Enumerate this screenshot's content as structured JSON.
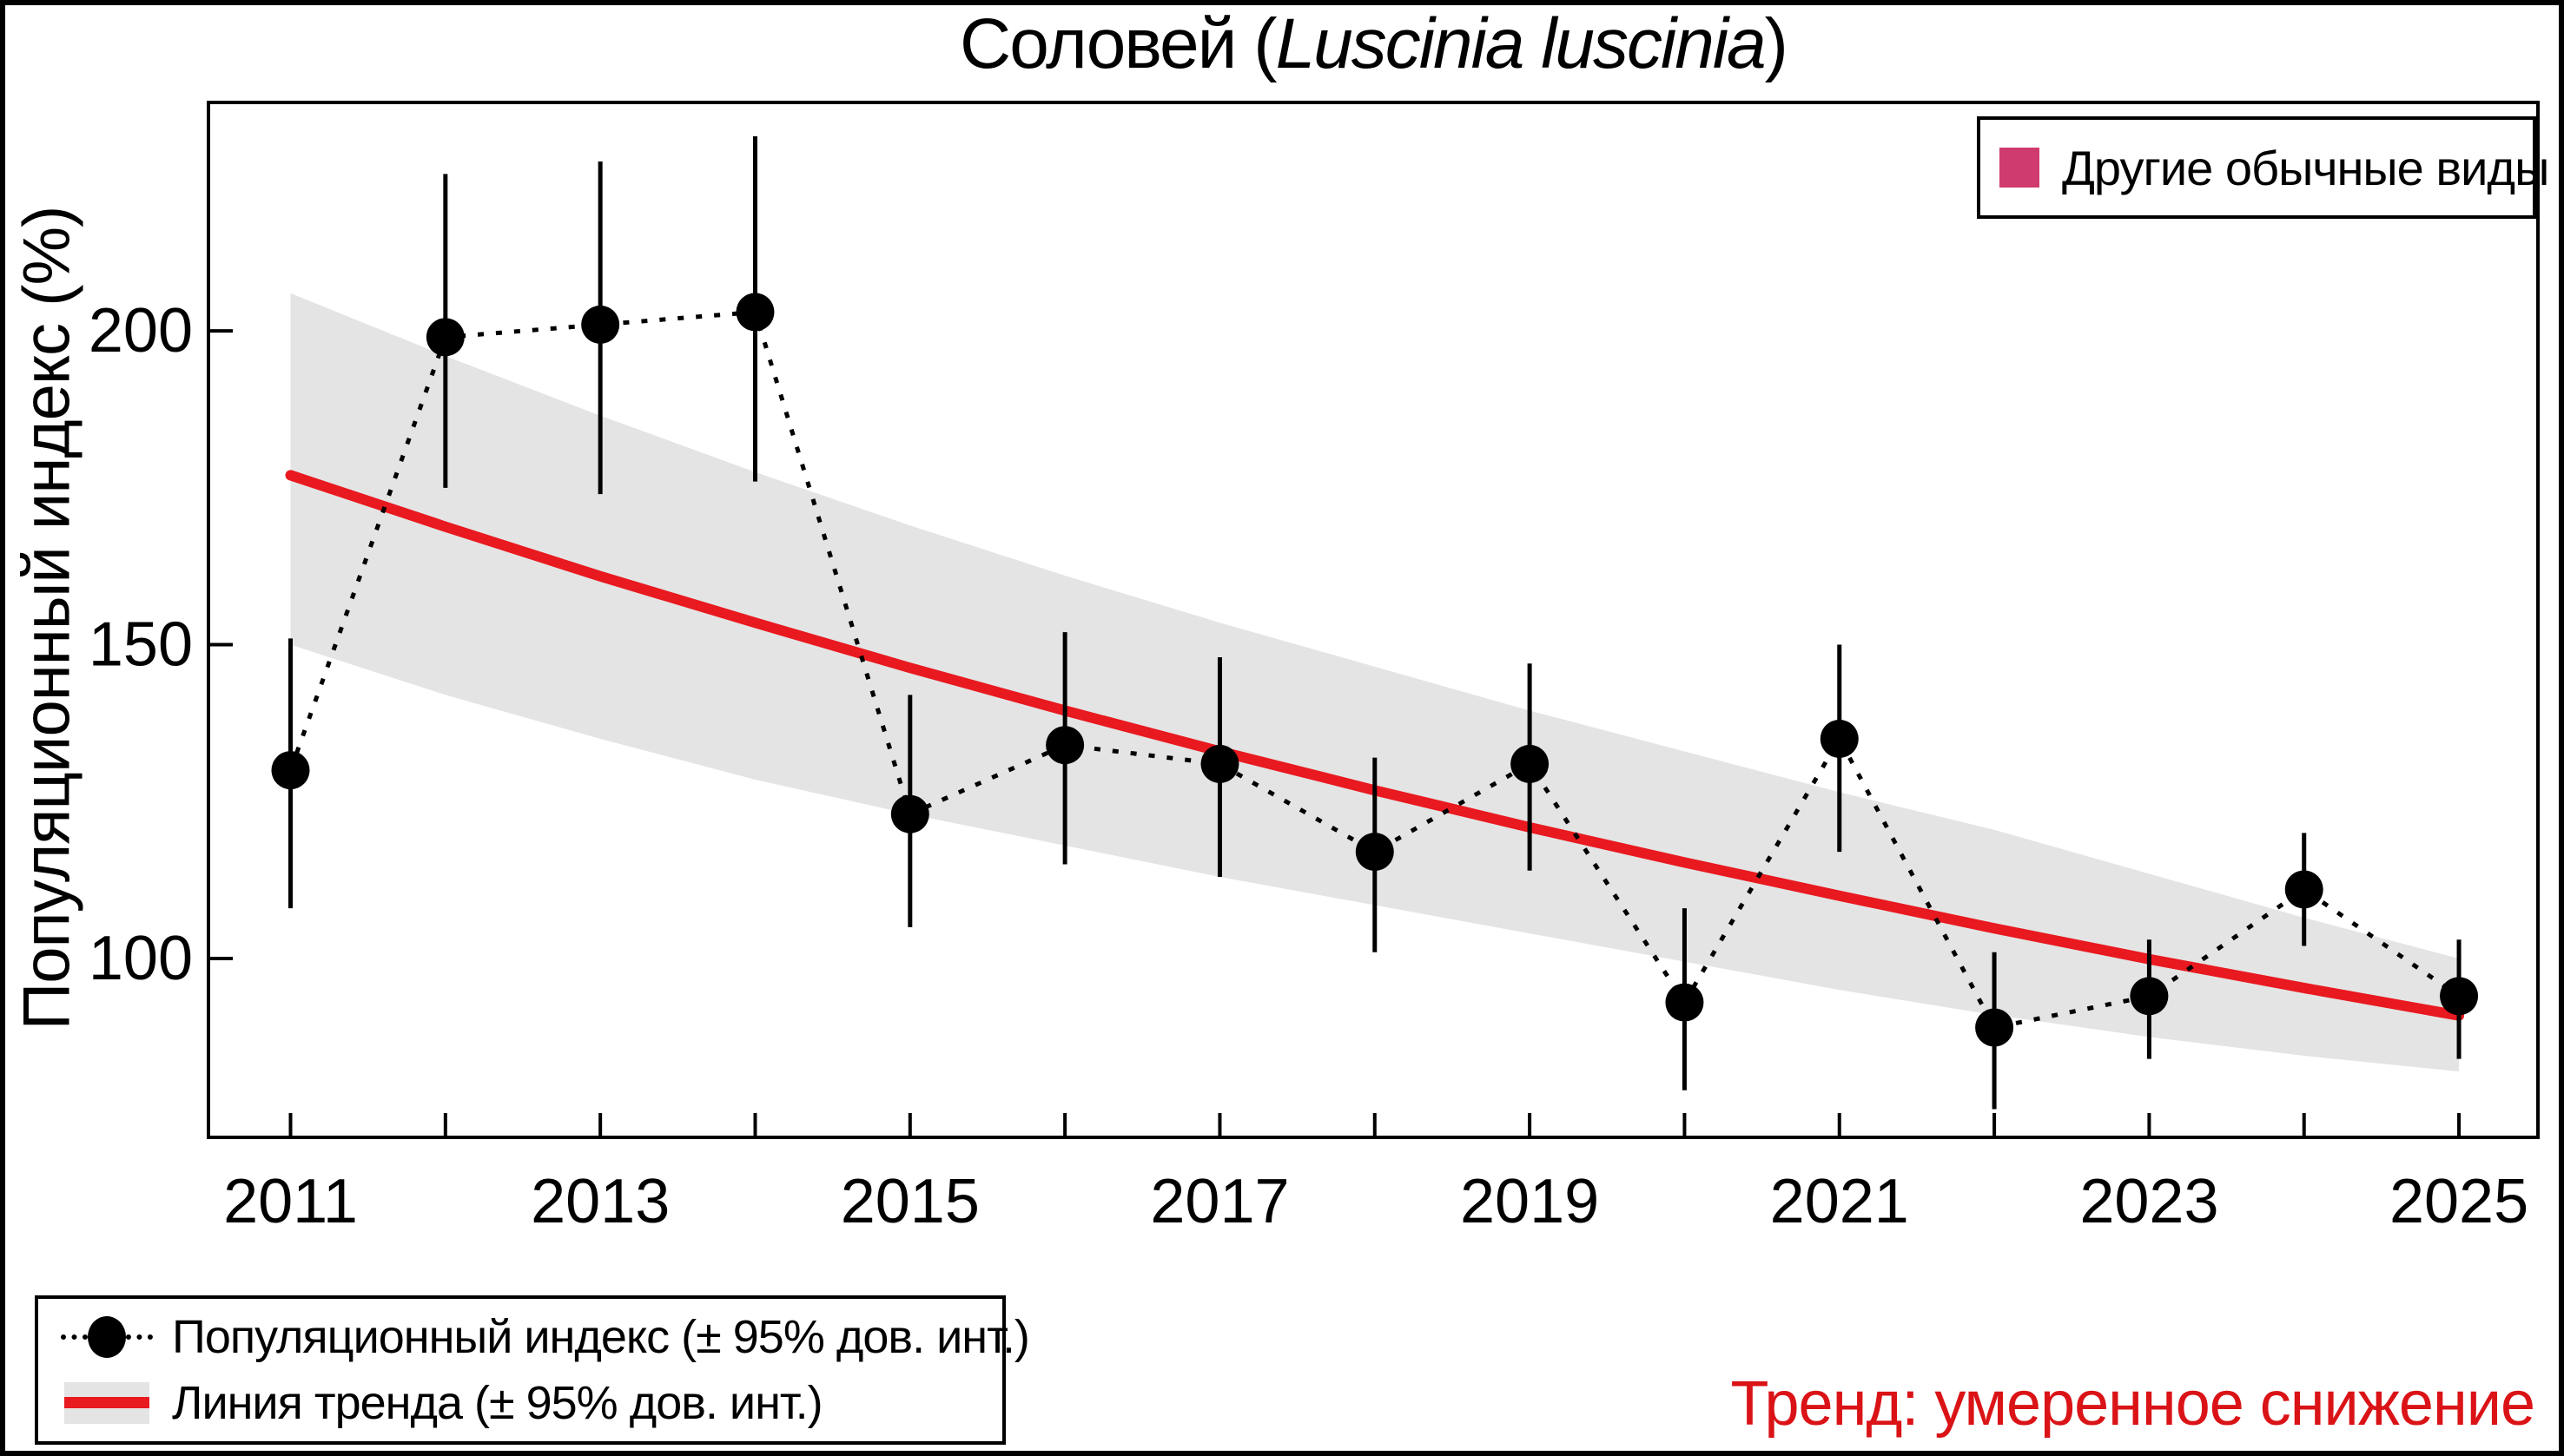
{
  "title": {
    "prefix": "Соловей (",
    "species": "Luscinia luscinia",
    "suffix": ")"
  },
  "y_axis": {
    "label": "Популяционный индекс (%)",
    "ticks": [
      100,
      150,
      200
    ]
  },
  "x_axis": {
    "label_years": [
      2011,
      2013,
      2015,
      2017,
      2019,
      2021,
      2023,
      2025
    ]
  },
  "legend_top": {
    "label": "Другие обычные виды",
    "swatch_color": "#cf3a6f"
  },
  "legend_bottom": {
    "item_index": "Популяционный индекс (± 95% дов. инт.)",
    "item_trend": "Линия тренда (± 95% дов. инт.)"
  },
  "trend_note": {
    "text": "Тренд: умеренное снижение",
    "color": "#da1317"
  },
  "chart_data": {
    "type": "line",
    "title": "Соловей (Luscinia luscinia)",
    "xlabel": "",
    "ylabel": "Популяционный индекс (%)",
    "x": [
      2011,
      2012,
      2013,
      2014,
      2015,
      2016,
      2017,
      2018,
      2019,
      2020,
      2021,
      2022,
      2023,
      2024,
      2025
    ],
    "xlim": [
      2010.47,
      2025.51
    ],
    "ylim": [
      71.5,
      236.4
    ],
    "grid": false,
    "series": [
      {
        "name": "Популяционный индекс (± 95% дов. инт.)",
        "values": [
          130,
          199,
          201,
          203,
          123,
          134,
          131,
          117,
          131,
          93,
          135,
          89,
          94,
          111,
          94
        ],
        "ci_low": [
          108,
          175,
          174,
          176,
          105,
          115,
          113,
          101,
          114,
          79,
          117,
          76,
          84,
          102,
          84
        ],
        "ci_high": [
          151,
          225,
          227,
          231,
          142,
          152,
          148,
          132,
          147,
          108,
          150,
          101,
          103,
          120,
          103
        ]
      },
      {
        "name": "Линия тренда (± 95% дов. инт.)",
        "values": [
          177.0,
          168.8,
          160.9,
          153.5,
          146.3,
          139.5,
          133.0,
          126.8,
          120.9,
          115.3,
          110.0,
          104.8,
          99.9,
          95.3,
          90.9
        ],
        "band_high": [
          206.0,
          196.0,
          186.5,
          177.5,
          169.0,
          161.0,
          153.5,
          146.5,
          139.5,
          133.0,
          126.5,
          120.5,
          113.5,
          106.5,
          100.0
        ],
        "band_low": [
          150.0,
          142.0,
          135.0,
          128.5,
          123.0,
          118.0,
          113.0,
          108.5,
          104.0,
          99.5,
          95.0,
          91.0,
          87.5,
          84.5,
          82.0
        ]
      }
    ],
    "colors": {
      "points": "#000000",
      "trend": "#e8191f",
      "band": "#e4e4e4",
      "other_species": "#cf3a6f"
    }
  }
}
